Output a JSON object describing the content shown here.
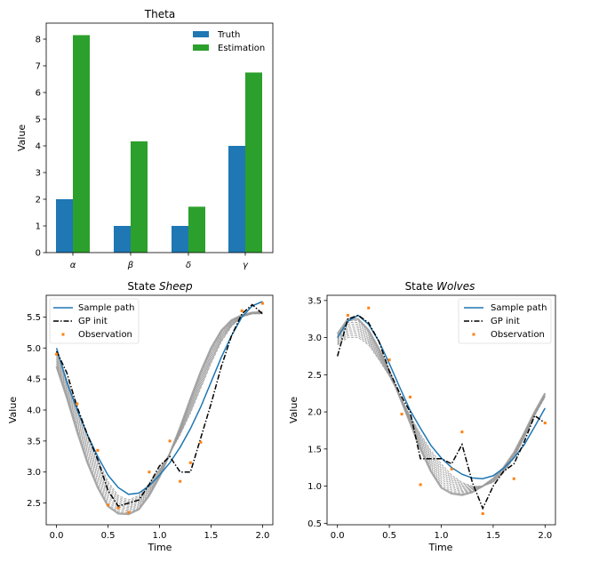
{
  "colors": {
    "truth": "#1f77b4",
    "estimation": "#2ca02c",
    "sample_path": "#1f77b4",
    "gp_init": "#000000",
    "observation": "#ff7f0e",
    "iterates": "#999999"
  },
  "chart_data": [
    {
      "id": "theta",
      "type": "bar",
      "title": "Theta",
      "xlabel": "",
      "ylabel": "Value",
      "categories": [
        "α",
        "β",
        "δ",
        "γ"
      ],
      "series": [
        {
          "name": "Truth",
          "values": [
            2,
            1,
            1,
            4
          ]
        },
        {
          "name": "Estimation",
          "values": [
            8.15,
            4.17,
            1.72,
            6.75
          ]
        }
      ],
      "ylim": [
        0,
        8.6
      ],
      "yticks": [
        "0",
        "1",
        "2",
        "3",
        "4",
        "5",
        "6",
        "7",
        "8"
      ],
      "legend": "top-right",
      "grid": false
    },
    {
      "id": "sheep",
      "type": "line",
      "title": "State ",
      "title_italic": "Sheep",
      "xlabel": "Time",
      "ylabel": "Value",
      "xlim": [
        -0.1,
        2.1
      ],
      "ylim": [
        2.15,
        5.85
      ],
      "xticks": [
        "0.0",
        "0.5",
        "1.0",
        "1.5",
        "2.0"
      ],
      "yticks": [
        "2.5",
        "3.0",
        "3.5",
        "4.0",
        "4.5",
        "5.0",
        "5.5"
      ],
      "legend": "top-left",
      "legend_labels": {
        "sample": "Sample path",
        "gp": "GP init",
        "obs": "Observation"
      },
      "sample_path": {
        "x": [
          0,
          0.1,
          0.2,
          0.3,
          0.4,
          0.5,
          0.6,
          0.7,
          0.8,
          0.9,
          1.0,
          1.1,
          1.2,
          1.3,
          1.4,
          1.5,
          1.6,
          1.7,
          1.8,
          1.9,
          2.0
        ],
        "y": [
          5.0,
          4.45,
          4.0,
          3.6,
          3.25,
          2.95,
          2.75,
          2.64,
          2.66,
          2.78,
          2.95,
          3.15,
          3.4,
          3.7,
          4.05,
          4.45,
          4.85,
          5.2,
          5.5,
          5.68,
          5.75
        ]
      },
      "gp_init": {
        "x": [
          0,
          0.1,
          0.2,
          0.3,
          0.4,
          0.5,
          0.6,
          0.7,
          0.8,
          0.9,
          1.0,
          1.1,
          1.2,
          1.3,
          1.4,
          1.5,
          1.6,
          1.7,
          1.8,
          1.9,
          2.0
        ],
        "y": [
          4.95,
          4.6,
          4.05,
          3.6,
          3.2,
          2.7,
          2.45,
          2.5,
          2.55,
          2.8,
          3.1,
          3.25,
          3.0,
          3.0,
          3.55,
          4.1,
          4.7,
          5.2,
          5.55,
          5.7,
          5.55
        ]
      },
      "observations": {
        "x": [
          0.0,
          0.2,
          0.4,
          0.5,
          0.6,
          0.7,
          0.9,
          1.1,
          1.2,
          1.3,
          1.4,
          1.8,
          2.0
        ],
        "y": [
          4.9,
          4.1,
          3.35,
          2.47,
          2.42,
          2.35,
          3.0,
          3.5,
          2.85,
          3.15,
          3.48,
          5.6,
          5.72
        ]
      },
      "iterates": {
        "x": [
          0,
          0.1,
          0.2,
          0.3,
          0.4,
          0.5,
          0.6,
          0.7,
          0.8,
          0.9,
          1.0,
          1.1,
          1.2,
          1.3,
          1.4,
          1.5,
          1.6,
          1.7,
          1.8,
          1.9,
          2.0
        ],
        "from": [
          4.95,
          4.5,
          4.05,
          3.6,
          3.2,
          2.85,
          2.62,
          2.55,
          2.62,
          2.82,
          3.05,
          3.3,
          3.6,
          3.95,
          4.35,
          4.75,
          5.1,
          5.35,
          5.5,
          5.55,
          5.55
        ],
        "to": [
          4.7,
          4.2,
          3.65,
          3.15,
          2.75,
          2.45,
          2.33,
          2.32,
          2.4,
          2.62,
          2.92,
          3.3,
          3.72,
          4.18,
          4.62,
          5.0,
          5.28,
          5.45,
          5.53,
          5.57,
          5.58
        ],
        "count": 12
      }
    },
    {
      "id": "wolves",
      "type": "line",
      "title": "State ",
      "title_italic": "Wolves",
      "xlabel": "Time",
      "ylabel": "Value",
      "xlim": [
        -0.1,
        2.1
      ],
      "ylim": [
        0.48,
        3.57
      ],
      "xticks": [
        "0.0",
        "0.5",
        "1.0",
        "1.5",
        "2.0"
      ],
      "yticks": [
        "0.5",
        "1.0",
        "1.5",
        "2.0",
        "2.5",
        "3.0",
        "3.5"
      ],
      "legend": "top-right",
      "legend_labels": {
        "sample": "Sample path",
        "gp": "GP init",
        "obs": "Observation"
      },
      "sample_path": {
        "x": [
          0,
          0.1,
          0.2,
          0.3,
          0.4,
          0.5,
          0.6,
          0.7,
          0.8,
          0.9,
          1.0,
          1.1,
          1.2,
          1.3,
          1.4,
          1.5,
          1.6,
          1.7,
          1.8,
          1.9,
          2.0
        ],
        "y": [
          3.0,
          3.22,
          3.3,
          3.18,
          2.95,
          2.65,
          2.33,
          2.02,
          1.78,
          1.55,
          1.38,
          1.25,
          1.16,
          1.11,
          1.1,
          1.14,
          1.24,
          1.38,
          1.56,
          1.8,
          2.05
        ]
      },
      "gp_init": {
        "x": [
          0,
          0.1,
          0.2,
          0.3,
          0.4,
          0.5,
          0.6,
          0.7,
          0.8,
          0.9,
          1.0,
          1.1,
          1.2,
          1.3,
          1.4,
          1.5,
          1.6,
          1.7,
          1.8,
          1.9,
          2.0
        ],
        "y": [
          2.75,
          3.25,
          3.3,
          3.2,
          2.95,
          2.55,
          2.25,
          2.0,
          1.37,
          1.37,
          1.37,
          1.3,
          1.56,
          1.05,
          0.7,
          1.0,
          1.2,
          1.3,
          1.6,
          1.95,
          1.85
        ]
      },
      "observations": {
        "x": [
          0.1,
          0.3,
          0.5,
          0.62,
          0.7,
          0.8,
          1.1,
          1.2,
          1.4,
          1.7,
          2.0
        ],
        "y": [
          3.3,
          3.4,
          2.7,
          1.97,
          2.2,
          1.02,
          1.23,
          1.73,
          0.63,
          1.1,
          1.85
        ]
      },
      "iterates": {
        "x": [
          0,
          0.1,
          0.2,
          0.3,
          0.4,
          0.5,
          0.6,
          0.7,
          0.8,
          0.9,
          1.0,
          1.1,
          1.2,
          1.3,
          1.4,
          1.5,
          1.6,
          1.7,
          1.8,
          1.9,
          2.0
        ],
        "from": [
          2.9,
          3.0,
          3.0,
          2.9,
          2.7,
          2.48,
          2.22,
          1.95,
          1.7,
          1.48,
          1.3,
          1.15,
          1.05,
          1.0,
          1.0,
          1.05,
          1.18,
          1.38,
          1.65,
          1.95,
          2.2
        ],
        "to": [
          3.05,
          3.25,
          3.25,
          3.1,
          2.85,
          2.55,
          2.2,
          1.85,
          1.5,
          1.2,
          0.98,
          0.9,
          0.88,
          0.92,
          1.0,
          1.1,
          1.25,
          1.45,
          1.72,
          2.0,
          2.25
        ],
        "count": 12
      }
    }
  ]
}
